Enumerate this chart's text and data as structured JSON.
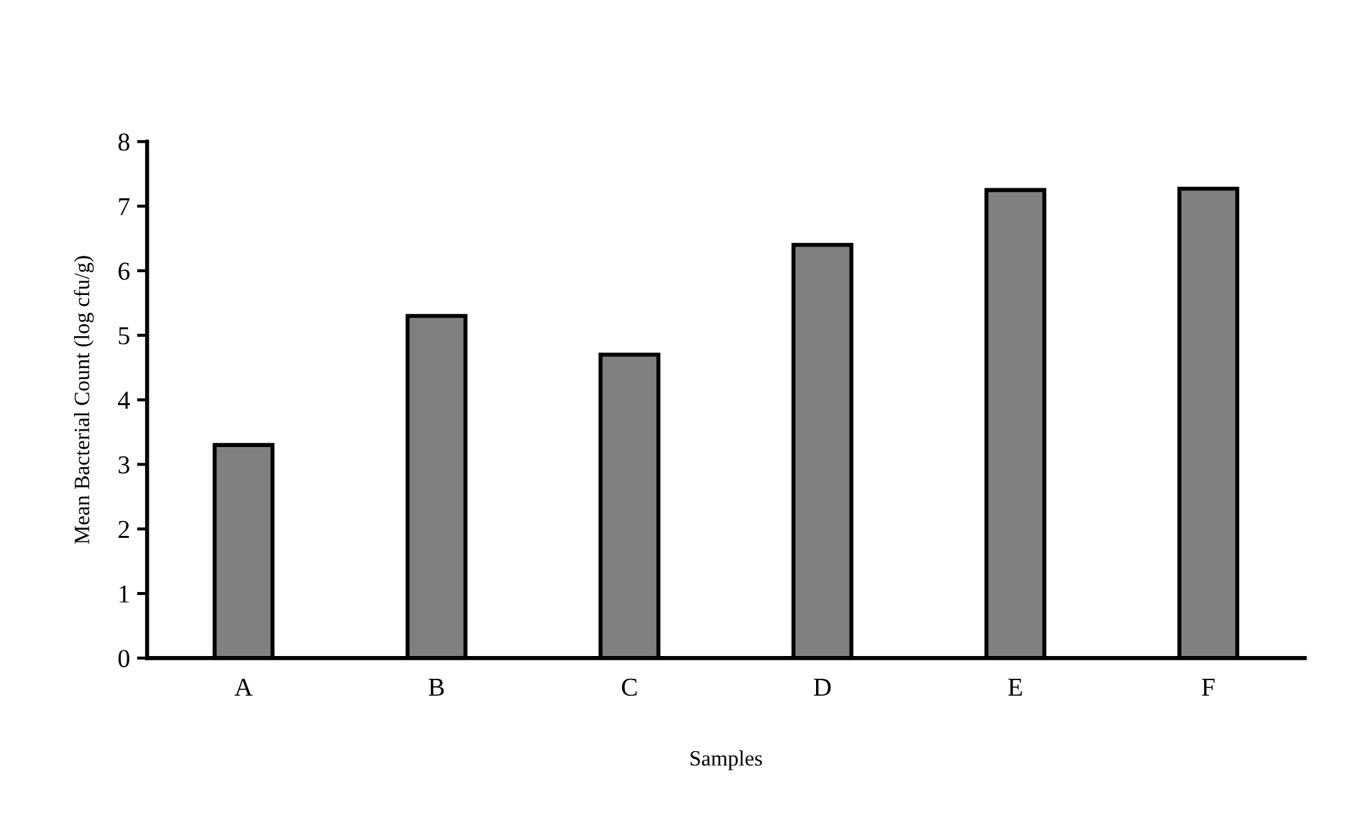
{
  "chart_data": {
    "type": "bar",
    "xlabel": "Samples",
    "ylabel": "Mean Bacterial Count (log cfu/g)",
    "categories": [
      "A",
      "B",
      "C",
      "D",
      "E",
      "F"
    ],
    "values": [
      3.3,
      5.3,
      4.7,
      6.4,
      7.25,
      7.27
    ],
    "color": "#808080",
    "ylim": [
      0,
      8
    ],
    "yticks": [
      0,
      1,
      2,
      3,
      4,
      5,
      6,
      7,
      8
    ],
    "grid": false
  }
}
